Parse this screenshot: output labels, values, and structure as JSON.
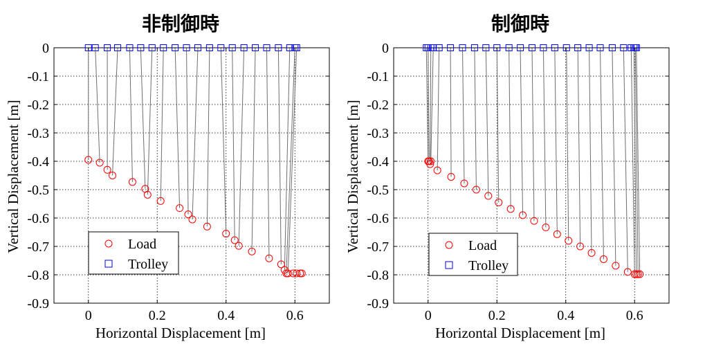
{
  "chart_data": [
    {
      "type": "scatter",
      "title": "非制御時",
      "xlabel": "Horizontal Displacement [m]",
      "ylabel": "Vertical Displacement [m]",
      "xlim": [
        -0.1,
        0.7
      ],
      "ylim": [
        -0.9,
        0
      ],
      "xticks": [
        0,
        0.2,
        0.4,
        0.6
      ],
      "xtick_labels": [
        "0",
        "0.2",
        "0.4",
        "0.6"
      ],
      "yticks": [
        0,
        -0.1,
        -0.2,
        -0.3,
        -0.4,
        -0.5,
        -0.6,
        -0.7,
        -0.8,
        -0.9
      ],
      "ytick_labels": [
        "0",
        "-0.1",
        "-0.2",
        "-0.3",
        "-0.4",
        "-0.5",
        "-0.6",
        "-0.7",
        "-0.8",
        "-0.9"
      ],
      "grid": true,
      "legend": {
        "position": "bottom-left",
        "entries": [
          "Load",
          "Trolley"
        ]
      },
      "series": [
        {
          "name": "Load",
          "marker": "circle",
          "color": "#ff0000",
          "x": [
            0.0,
            0.033,
            0.055,
            0.07,
            0.128,
            0.165,
            0.172,
            0.21,
            0.265,
            0.29,
            0.302,
            0.345,
            0.4,
            0.425,
            0.437,
            0.475,
            0.525,
            0.56,
            0.57,
            0.575,
            0.58,
            0.595,
            0.605,
            0.615,
            0.62
          ],
          "y": [
            -0.395,
            -0.405,
            -0.43,
            -0.45,
            -0.473,
            -0.497,
            -0.518,
            -0.54,
            -0.565,
            -0.587,
            -0.605,
            -0.63,
            -0.655,
            -0.678,
            -0.698,
            -0.718,
            -0.742,
            -0.763,
            -0.783,
            -0.795,
            -0.795,
            -0.795,
            -0.795,
            -0.795,
            -0.795
          ]
        },
        {
          "name": "Trolley",
          "marker": "square",
          "color": "#0000ff",
          "x": [
            0.0,
            0.02,
            0.055,
            0.085,
            0.12,
            0.152,
            0.185,
            0.218,
            0.252,
            0.285,
            0.318,
            0.352,
            0.385,
            0.418,
            0.452,
            0.485,
            0.518,
            0.552,
            0.585,
            0.6,
            0.605
          ],
          "y": [
            0,
            0,
            0,
            0,
            0,
            0,
            0,
            0,
            0,
            0,
            0,
            0,
            0,
            0,
            0,
            0,
            0,
            0,
            0,
            0,
            0
          ]
        }
      ]
    },
    {
      "type": "scatter",
      "title": "制御時",
      "xlabel": "Horizontal Displacement [m]",
      "ylabel": "Vertical Displacement [m]",
      "xlim": [
        -0.1,
        0.7
      ],
      "ylim": [
        -0.9,
        0
      ],
      "xticks": [
        0,
        0.2,
        0.4,
        0.6
      ],
      "xtick_labels": [
        "0",
        "0.2",
        "0.4",
        "0.6"
      ],
      "yticks": [
        0,
        -0.1,
        -0.2,
        -0.3,
        -0.4,
        -0.5,
        -0.6,
        -0.7,
        -0.8,
        -0.9
      ],
      "ytick_labels": [
        "0",
        "-0.1",
        "-0.2",
        "-0.3",
        "-0.4",
        "-0.5",
        "-0.6",
        "-0.7",
        "-0.8",
        "-0.9"
      ],
      "grid": true,
      "legend": {
        "position": "bottom-left",
        "entries": [
          "Load",
          "Trolley"
        ]
      },
      "series": [
        {
          "name": "Load",
          "marker": "circle",
          "color": "#ff0000",
          "x": [
            0.0,
            0.003,
            0.006,
            0.008,
            0.027,
            0.067,
            0.105,
            0.14,
            0.175,
            0.205,
            0.24,
            0.275,
            0.308,
            0.342,
            0.375,
            0.408,
            0.442,
            0.475,
            0.51,
            0.545,
            0.58,
            0.6,
            0.605,
            0.61,
            0.615
          ],
          "y": [
            -0.4,
            -0.4,
            -0.41,
            -0.4,
            -0.432,
            -0.455,
            -0.478,
            -0.5,
            -0.522,
            -0.545,
            -0.568,
            -0.59,
            -0.61,
            -0.633,
            -0.657,
            -0.68,
            -0.7,
            -0.723,
            -0.745,
            -0.768,
            -0.79,
            -0.798,
            -0.798,
            -0.798,
            -0.798
          ]
        },
        {
          "name": "Trolley",
          "marker": "square",
          "color": "#0000ff",
          "x": [
            -0.005,
            0.0,
            0.008,
            0.015,
            0.032,
            0.065,
            0.1,
            0.135,
            0.168,
            0.2,
            0.235,
            0.268,
            0.302,
            0.335,
            0.368,
            0.402,
            0.435,
            0.468,
            0.5,
            0.535,
            0.568,
            0.59,
            0.598,
            0.602,
            0.605
          ],
          "y": [
            0,
            0,
            0,
            0,
            0,
            0,
            0,
            0,
            0,
            0,
            0,
            0,
            0,
            0,
            0,
            0,
            0,
            0,
            0,
            0,
            0,
            0,
            0,
            0,
            0
          ]
        }
      ]
    }
  ]
}
